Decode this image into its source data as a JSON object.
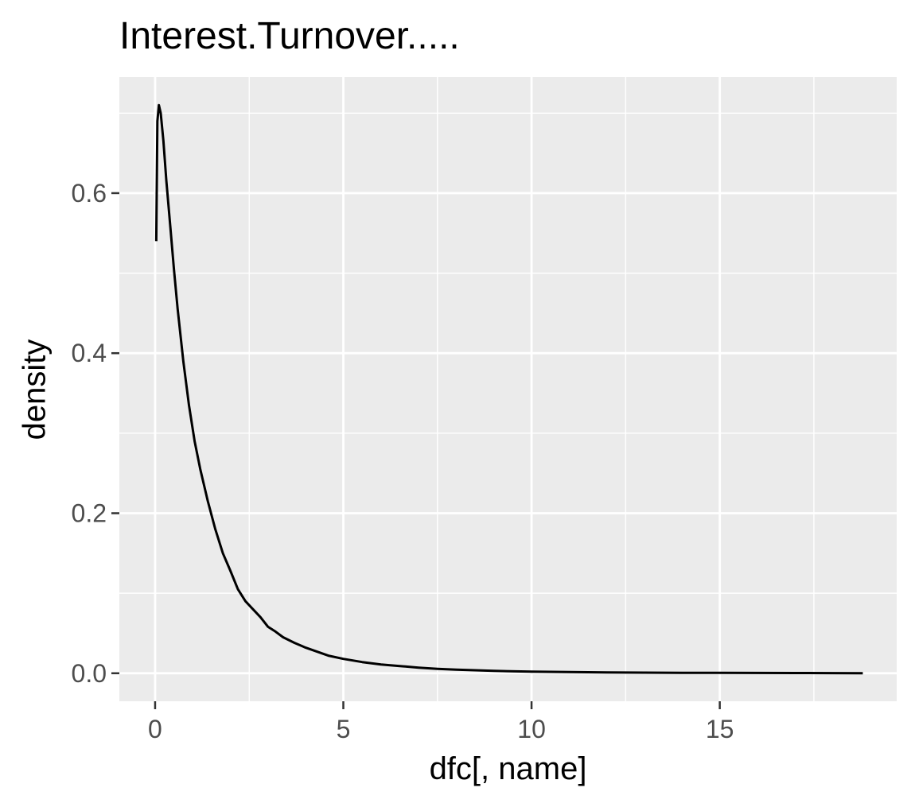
{
  "chart_data": {
    "type": "line",
    "title": "Interest.Turnover.....",
    "xlabel": "dfc[, name]",
    "ylabel": "density",
    "xlim": [
      -0.95,
      19.7
    ],
    "ylim": [
      -0.035,
      0.745
    ],
    "xticks": [
      0,
      5,
      10,
      15
    ],
    "xtick_labels": [
      "0",
      "5",
      "10",
      "15"
    ],
    "xticks_minor": [
      2.5,
      7.5,
      12.5,
      17.5
    ],
    "yticks": [
      0.0,
      0.2,
      0.4,
      0.6
    ],
    "ytick_labels": [
      "0.0",
      "0.2",
      "0.4",
      "0.6"
    ],
    "yticks_minor": [
      0.1,
      0.3,
      0.5,
      0.7
    ],
    "grid": true,
    "background_color": "#ebebeb",
    "grid_color": "#ffffff",
    "line_color": "#000000",
    "series": [
      {
        "x": [
          0.03,
          0.06,
          0.1,
          0.15,
          0.22,
          0.3,
          0.4,
          0.5,
          0.6,
          0.75,
          0.9,
          1.05,
          1.2,
          1.4,
          1.6,
          1.8,
          2.0,
          2.2,
          2.4,
          2.6,
          2.8,
          3.0,
          3.2,
          3.4,
          3.7,
          4.0,
          4.3,
          4.6,
          5.0,
          5.5,
          6.0,
          6.5,
          7.0,
          7.5,
          8.0,
          9.0,
          10.0,
          11.0,
          12.0,
          13.0,
          14.0,
          15.0,
          16.0,
          17.0,
          18.0,
          18.8
        ],
        "y": [
          0.54,
          0.69,
          0.71,
          0.7,
          0.665,
          0.615,
          0.56,
          0.505,
          0.455,
          0.39,
          0.335,
          0.29,
          0.255,
          0.215,
          0.18,
          0.15,
          0.128,
          0.105,
          0.09,
          0.08,
          0.07,
          0.058,
          0.052,
          0.045,
          0.038,
          0.032,
          0.027,
          0.022,
          0.018,
          0.014,
          0.011,
          0.009,
          0.007,
          0.0055,
          0.0045,
          0.003,
          0.002,
          0.0015,
          0.0011,
          0.0008,
          0.0006,
          0.0005,
          0.0004,
          0.0003,
          0.0002,
          0.0001
        ]
      }
    ]
  }
}
